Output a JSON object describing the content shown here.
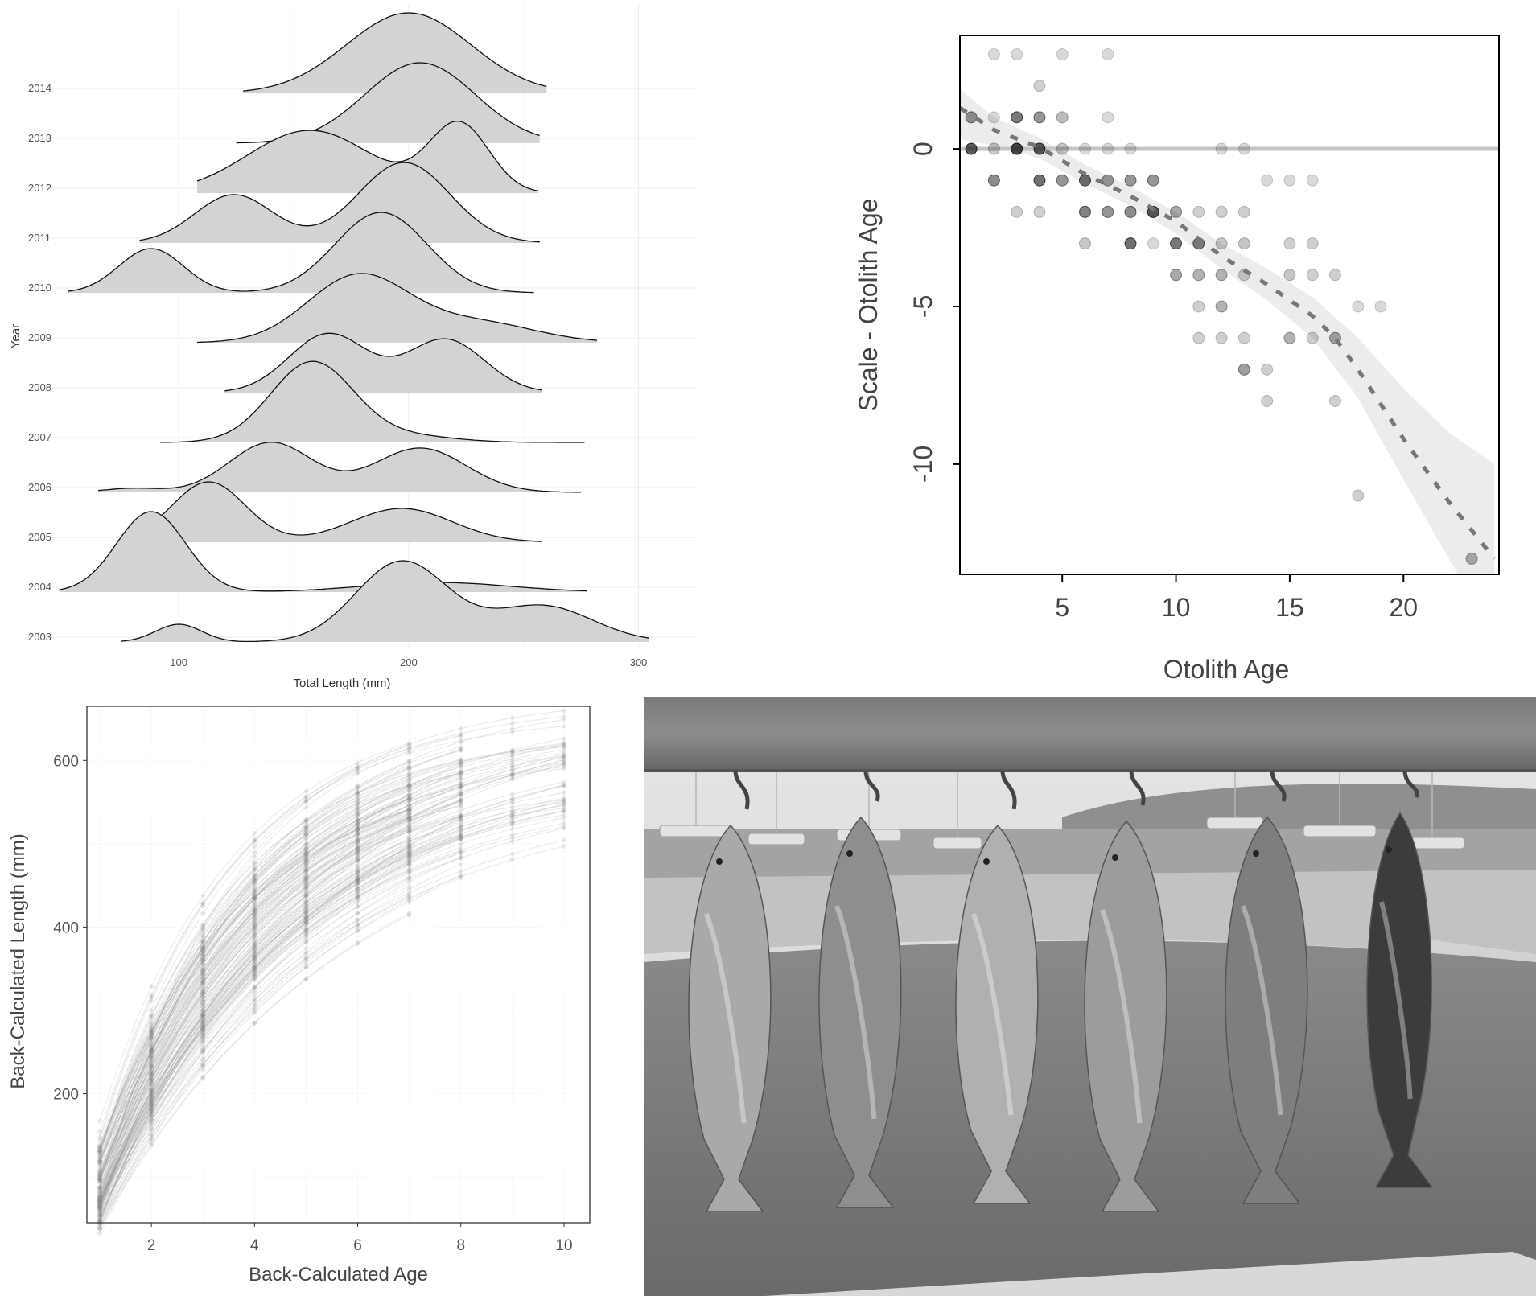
{
  "colors": {
    "fill": "#d3d3d3",
    "ink": "#111111",
    "grid": "#ededed",
    "dashed": "#777777",
    "band": "#ececec",
    "zero_line": "#c4c4c4"
  },
  "chart_data": [
    {
      "type": "area",
      "subtype": "ridgeline-density",
      "xlabel": "Total Length (mm)",
      "ylabel": "Year",
      "xlim": [
        45,
        325
      ],
      "xticks": [
        100,
        200,
        300
      ],
      "categories": [
        "2003",
        "2004",
        "2005",
        "2006",
        "2007",
        "2008",
        "2009",
        "2010",
        "2011",
        "2012",
        "2013",
        "2014"
      ],
      "series": [
        {
          "name": "2003",
          "range": [
            75,
            305
          ],
          "peaks": [
            {
              "mu": 100,
              "sd": 10,
              "a": 0.22
            },
            {
              "mu": 197,
              "sd": 20,
              "a": 1.0
            },
            {
              "mu": 258,
              "sd": 22,
              "a": 0.45
            }
          ]
        },
        {
          "name": "2004",
          "range": [
            48,
            278
          ],
          "peaks": [
            {
              "mu": 88,
              "sd": 15,
              "a": 1.0
            },
            {
              "mu": 212,
              "sd": 32,
              "a": 0.12
            }
          ]
        },
        {
          "name": "2005",
          "range": [
            75,
            258
          ],
          "peaks": [
            {
              "mu": 113,
              "sd": 16,
              "a": 0.75
            },
            {
              "mu": 197,
              "sd": 22,
              "a": 0.42
            }
          ]
        },
        {
          "name": "2006",
          "range": [
            65,
            275
          ],
          "peaks": [
            {
              "mu": 80,
              "sd": 12,
              "a": 0.05
            },
            {
              "mu": 140,
              "sd": 18,
              "a": 0.62
            },
            {
              "mu": 205,
              "sd": 20,
              "a": 0.55
            }
          ]
        },
        {
          "name": "2007",
          "range": [
            92,
            277
          ],
          "peaks": [
            {
              "mu": 158,
              "sd": 18,
              "a": 1.0
            },
            {
              "mu": 200,
              "sd": 20,
              "a": 0.08
            }
          ]
        },
        {
          "name": "2008",
          "range": [
            120,
            258
          ],
          "peaks": [
            {
              "mu": 165,
              "sd": 17,
              "a": 0.73
            },
            {
              "mu": 216,
              "sd": 17,
              "a": 0.66
            }
          ]
        },
        {
          "name": "2009",
          "range": [
            108,
            282
          ],
          "peaks": [
            {
              "mu": 178,
              "sd": 22,
              "a": 0.83
            },
            {
              "mu": 230,
              "sd": 25,
              "a": 0.25
            }
          ]
        },
        {
          "name": "2010",
          "range": [
            52,
            255
          ],
          "peaks": [
            {
              "mu": 88,
              "sd": 14,
              "a": 0.55
            },
            {
              "mu": 188,
              "sd": 20,
              "a": 1.0
            }
          ]
        },
        {
          "name": "2011",
          "range": [
            83,
            257
          ],
          "peaks": [
            {
              "mu": 124,
              "sd": 17,
              "a": 0.6
            },
            {
              "mu": 198,
              "sd": 20,
              "a": 1.0
            }
          ]
        },
        {
          "name": "2012",
          "range": [
            108,
            257
          ],
          "peaks": [
            {
              "mu": 157,
              "sd": 27,
              "a": 0.78
            },
            {
              "mu": 222,
              "sd": 13,
              "a": 0.85
            }
          ]
        },
        {
          "name": "2013",
          "range": [
            125,
            258
          ],
          "peaks": [
            {
              "mu": 205,
              "sd": 24,
              "a": 1.0
            }
          ]
        },
        {
          "name": "2014",
          "range": [
            128,
            260
          ],
          "peaks": [
            {
              "mu": 200,
              "sd": 27,
              "a": 1.0
            }
          ]
        }
      ]
    },
    {
      "type": "scatter",
      "xlabel": "Otolith Age",
      "ylabel": "Scale - Otolith Age",
      "xlim": [
        0.5,
        24.2
      ],
      "ylim": [
        -13.5,
        3.6
      ],
      "xticks": [
        5,
        10,
        15,
        20
      ],
      "yticks": [
        0,
        -5,
        -10
      ],
      "hline": 0,
      "points": [
        [
          1,
          1,
          0.55
        ],
        [
          1,
          0,
          0.85
        ],
        [
          2,
          3,
          0.2
        ],
        [
          2,
          1,
          0.2
        ],
        [
          2,
          0,
          0.3
        ],
        [
          2,
          -1,
          0.6
        ],
        [
          3,
          3,
          0.2
        ],
        [
          3,
          1,
          0.7
        ],
        [
          3,
          0,
          0.95
        ],
        [
          3,
          -2,
          0.25
        ],
        [
          4,
          2,
          0.25
        ],
        [
          4,
          1,
          0.55
        ],
        [
          4,
          0,
          0.85
        ],
        [
          4,
          -1,
          0.75
        ],
        [
          4,
          -2,
          0.25
        ],
        [
          5,
          3,
          0.2
        ],
        [
          5,
          1,
          0.35
        ],
        [
          5,
          0,
          0.3
        ],
        [
          5,
          -1,
          0.55
        ],
        [
          6,
          0,
          0.2
        ],
        [
          6,
          -1,
          0.75
        ],
        [
          6,
          -2,
          0.65
        ],
        [
          6,
          -3,
          0.3
        ],
        [
          7,
          3,
          0.2
        ],
        [
          7,
          1,
          0.2
        ],
        [
          7,
          0,
          0.2
        ],
        [
          7,
          -1,
          0.5
        ],
        [
          7,
          -2,
          0.55
        ],
        [
          8,
          0,
          0.2
        ],
        [
          8,
          -1,
          0.55
        ],
        [
          8,
          -2,
          0.6
        ],
        [
          8,
          -3,
          0.75
        ],
        [
          9,
          -1,
          0.55
        ],
        [
          9,
          -2,
          0.85
        ],
        [
          9,
          -3,
          0.2
        ],
        [
          10,
          -2,
          0.45
        ],
        [
          10,
          -3,
          0.7
        ],
        [
          10,
          -4,
          0.45
        ],
        [
          11,
          -2,
          0.25
        ],
        [
          11,
          -3,
          0.65
        ],
        [
          11,
          -4,
          0.4
        ],
        [
          11,
          -5,
          0.25
        ],
        [
          11,
          -6,
          0.25
        ],
        [
          12,
          0,
          0.2
        ],
        [
          12,
          -2,
          0.25
        ],
        [
          12,
          -3,
          0.3
        ],
        [
          12,
          -4,
          0.4
        ],
        [
          12,
          -5,
          0.4
        ],
        [
          12,
          -6,
          0.25
        ],
        [
          13,
          0,
          0.2
        ],
        [
          13,
          -2,
          0.25
        ],
        [
          13,
          -3,
          0.3
        ],
        [
          13,
          -4,
          0.25
        ],
        [
          13,
          -6,
          0.25
        ],
        [
          13,
          -7,
          0.5
        ],
        [
          14,
          -1,
          0.2
        ],
        [
          14,
          -7,
          0.25
        ],
        [
          14,
          -8,
          0.25
        ],
        [
          15,
          -1,
          0.2
        ],
        [
          15,
          -3,
          0.25
        ],
        [
          15,
          -4,
          0.3
        ],
        [
          15,
          -6,
          0.4
        ],
        [
          16,
          -1,
          0.2
        ],
        [
          16,
          -3,
          0.25
        ],
        [
          16,
          -4,
          0.25
        ],
        [
          16,
          -6,
          0.25
        ],
        [
          17,
          -4,
          0.25
        ],
        [
          17,
          -6,
          0.45
        ],
        [
          17,
          -8,
          0.25
        ],
        [
          18,
          -5,
          0.2
        ],
        [
          18,
          -11,
          0.25
        ],
        [
          19,
          -5,
          0.2
        ],
        [
          23,
          -13,
          0.4
        ]
      ],
      "trend": [
        [
          0.5,
          1.3
        ],
        [
          2,
          0.6
        ],
        [
          4,
          0.05
        ],
        [
          6,
          -0.8
        ],
        [
          8,
          -1.5
        ],
        [
          10,
          -2.3
        ],
        [
          12,
          -3.4
        ],
        [
          14,
          -4.3
        ],
        [
          16,
          -5.3
        ],
        [
          17,
          -6
        ],
        [
          18,
          -7
        ],
        [
          20,
          -9.2
        ],
        [
          22,
          -11.2
        ],
        [
          24,
          -13
        ]
      ],
      "band": [
        [
          0.5,
          1.9,
          0.3
        ],
        [
          2,
          1.0,
          0.1
        ],
        [
          4,
          0.35,
          -0.3
        ],
        [
          6,
          -0.5,
          -1.1
        ],
        [
          8,
          -1.2,
          -1.8
        ],
        [
          10,
          -2,
          -2.7
        ],
        [
          12,
          -3,
          -3.8
        ],
        [
          14,
          -3.8,
          -4.8
        ],
        [
          16,
          -4.7,
          -6
        ],
        [
          18,
          -6,
          -7.9
        ],
        [
          20,
          -7.6,
          -10.5
        ],
        [
          22,
          -9,
          -13
        ],
        [
          24,
          -10,
          -15.5
        ]
      ]
    },
    {
      "type": "line",
      "subtype": "individual-growth-curves",
      "xlabel": "Back-Calculated Age",
      "ylabel": "Back-Calculated Length (mm)",
      "xlim": [
        0.75,
        10.5
      ],
      "ylim": [
        45,
        665
      ],
      "xticks": [
        2,
        4,
        6,
        8,
        10
      ],
      "yticks": [
        200,
        400,
        600
      ],
      "curve_model": {
        "linf": [
          560,
          680
        ],
        "k": [
          0.2,
          0.4
        ],
        "t0": [
          0.25,
          0.75
        ],
        "count": 150
      }
    }
  ],
  "photo": {
    "fish_count": 6,
    "fish": [
      {
        "shade": "#a9a9a9",
        "tone": "silver"
      },
      {
        "shade": "#8e8e8e",
        "tone": "silver-spotted"
      },
      {
        "shade": "#b0b0b0",
        "tone": "silver"
      },
      {
        "shade": "#9c9c9c",
        "tone": "silver"
      },
      {
        "shade": "#7e7e7e",
        "tone": "silver"
      },
      {
        "shade": "#3c3c3c",
        "tone": "dark"
      }
    ]
  }
}
